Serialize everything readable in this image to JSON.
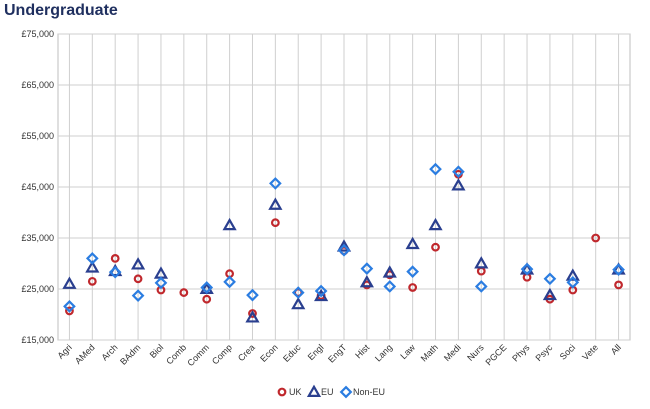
{
  "chart_data": {
    "type": "scatter",
    "title": "Undergraduate",
    "xlabel": "",
    "ylabel": "",
    "ylim": [
      15000,
      75000
    ],
    "y_ticks": [
      "£15,000",
      "£25,000",
      "£35,000",
      "£45,000",
      "£55,000",
      "£65,000",
      "£75,000"
    ],
    "y_tick_values": [
      15000,
      25000,
      35000,
      45000,
      55000,
      65000,
      75000
    ],
    "grid": true,
    "legend_position": "bottom",
    "categories": [
      "Agri",
      "AMed",
      "Arch",
      "BAdm",
      "Biol",
      "Comb",
      "Comm",
      "Comp",
      "Crea",
      "Econ",
      "Educ",
      "Engl",
      "EngT",
      "Hist",
      "Lang",
      "Law",
      "Math",
      "Medi",
      "Nurs",
      "PGCE",
      "Phys",
      "Psyc",
      "Soci",
      "Vete",
      "All"
    ],
    "series": [
      {
        "name": "UK",
        "marker": "circle",
        "color": "#c0282d",
        "values": [
          20700,
          26500,
          31000,
          27000,
          24800,
          24300,
          23000,
          28000,
          20200,
          38000,
          24300,
          23700,
          32500,
          25800,
          27800,
          25300,
          33200,
          47500,
          28500,
          null,
          27300,
          23000,
          24800,
          35000,
          25800
        ]
      },
      {
        "name": "EU",
        "marker": "triangle",
        "color": "#2a3f8f",
        "values": [
          26000,
          29200,
          28500,
          29800,
          28000,
          null,
          25000,
          37500,
          19400,
          41500,
          22000,
          23600,
          33300,
          26300,
          28200,
          33800,
          37500,
          45300,
          30000,
          null,
          28800,
          23800,
          27600,
          null,
          28800
        ]
      },
      {
        "name": "Non-EU",
        "marker": "diamond",
        "color": "#2b7de1",
        "values": [
          21600,
          31000,
          28300,
          23700,
          26200,
          null,
          25300,
          26400,
          23800,
          45700,
          24300,
          24600,
          32600,
          29000,
          25500,
          28400,
          48500,
          48000,
          25500,
          null,
          28900,
          27000,
          26300,
          null,
          28800
        ]
      }
    ]
  }
}
